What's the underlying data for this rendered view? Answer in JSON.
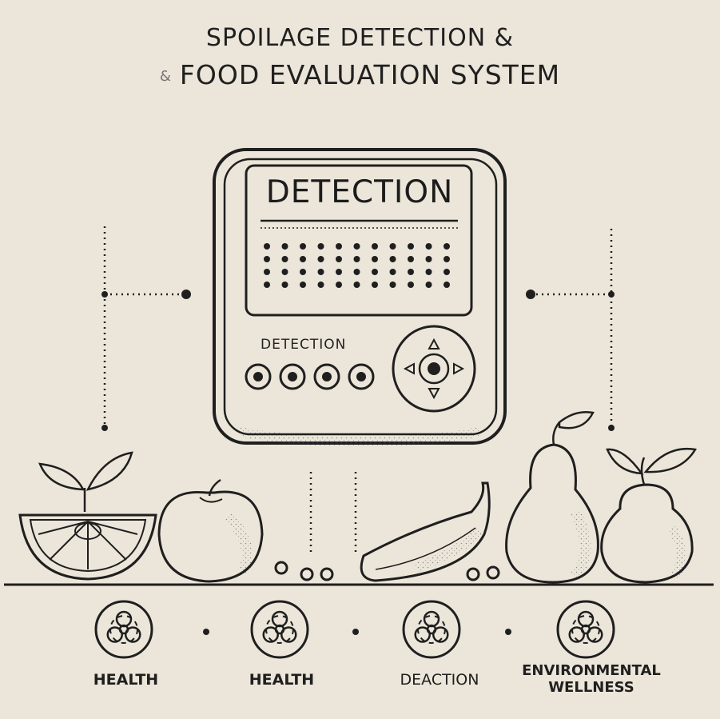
{
  "title": {
    "line1": "SPOILAGE DETECTION &",
    "line2_prefix": "&",
    "line2": "FOOD EVALUATION SYSTEM"
  },
  "device": {
    "screen_heading": "DETECTION",
    "panel_label": "DETECTION",
    "dot_rows": 4,
    "dot_cols": 11,
    "button_count": 4
  },
  "fruits": [
    "orange-slice",
    "apple",
    "banana",
    "pear",
    "pear"
  ],
  "categories": [
    {
      "label": "HEALTH",
      "icon": "biohazard-icon"
    },
    {
      "label": "HEALTH",
      "icon": "biohazard-icon"
    },
    {
      "label": "DEACTION",
      "icon": "biohazard-icon"
    },
    {
      "label": "ENVIRONMENTAL WELLNESS",
      "icon": "biohazard-icon"
    }
  ],
  "colors": {
    "background": "#ece6da",
    "ink": "#1f1f1f"
  }
}
